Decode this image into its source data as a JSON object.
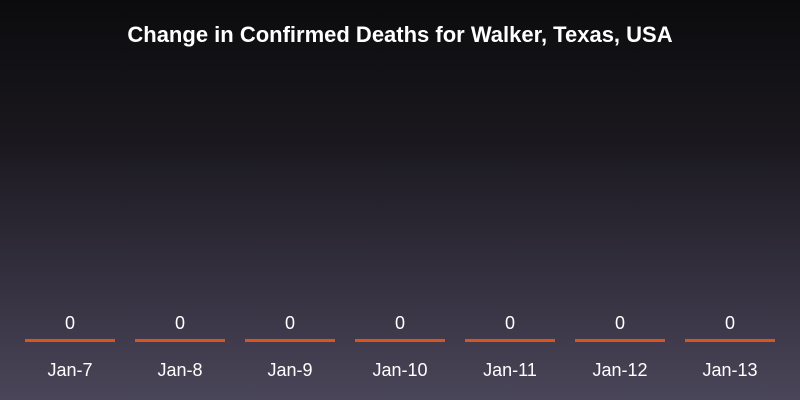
{
  "chart_data": {
    "type": "bar",
    "title": "Change in Confirmed Deaths for Walker, Texas, USA",
    "categories": [
      "Jan-7",
      "Jan-8",
      "Jan-9",
      "Jan-10",
      "Jan-11",
      "Jan-12",
      "Jan-13"
    ],
    "values": [
      0,
      0,
      0,
      0,
      0,
      0,
      0
    ],
    "data_labels": [
      "0",
      "0",
      "0",
      "0",
      "0",
      "0",
      "0"
    ],
    "bar_color": "#d9541f",
    "grid": false,
    "legend": "none"
  }
}
